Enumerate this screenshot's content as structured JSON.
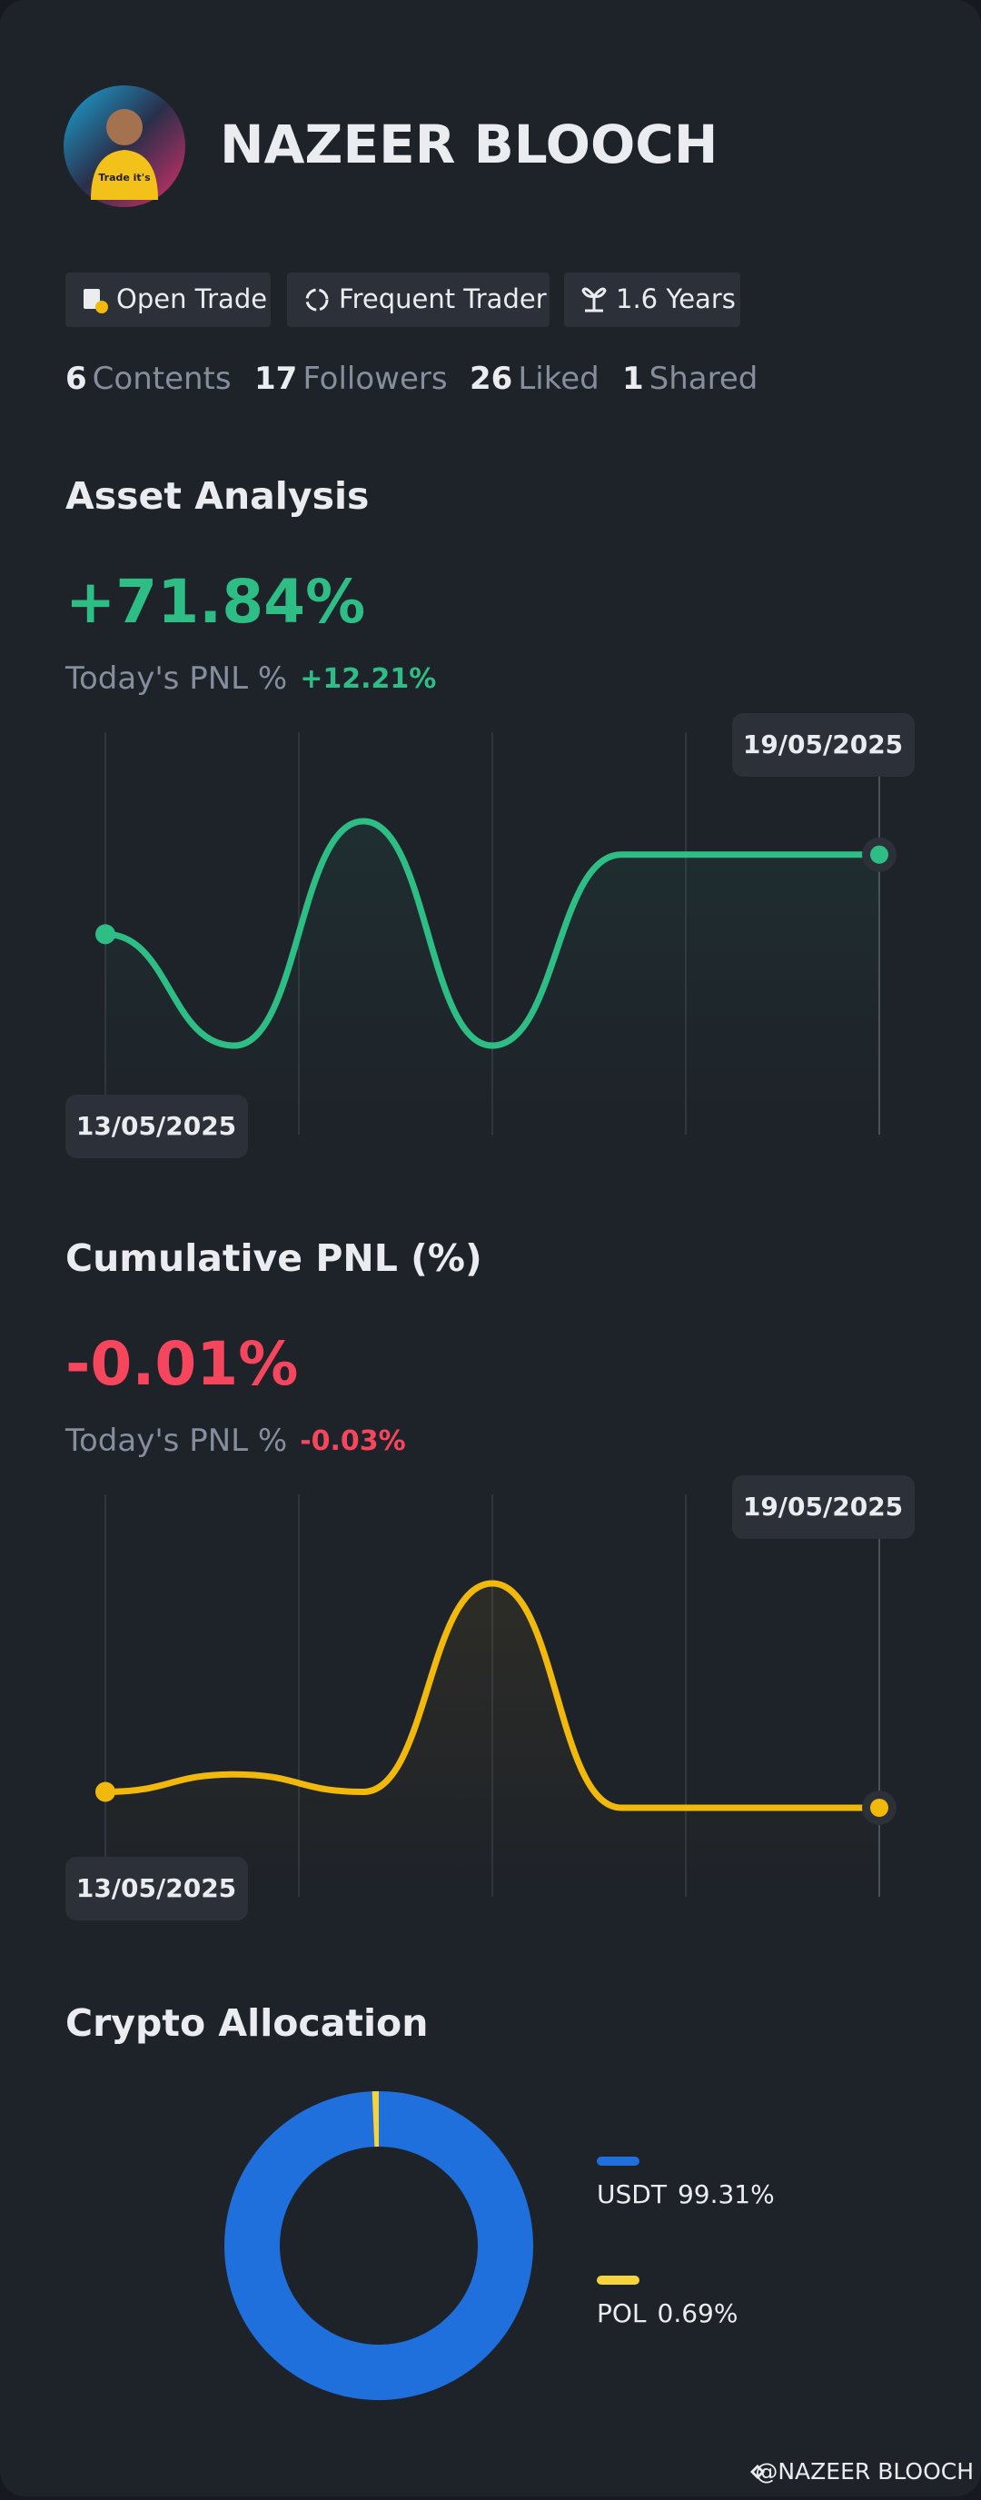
{
  "profile": {
    "name": "NAZEER BLOOCH",
    "tags": [
      "Open Trade",
      "Frequent Trader",
      "1.6 Years"
    ],
    "stats": [
      {
        "count": 6,
        "label": "Contents"
      },
      {
        "count": 17,
        "label": "Followers"
      },
      {
        "count": 26,
        "label": "Liked"
      },
      {
        "count": 1,
        "label": "Shared"
      }
    ]
  },
  "chart_data": [
    {
      "type": "line",
      "title": "Asset Analysis",
      "headline": "+71.84%",
      "today_label": "Today's PNL %",
      "today_value": "+12.21%",
      "categories": [
        "13/05/2025",
        null,
        null,
        null,
        null,
        null,
        "19/05/2025"
      ],
      "values": [
        0,
        -100.6,
        102,
        -100.6,
        71.84,
        71.84,
        71.84
      ],
      "color": "#2ebd85"
    },
    {
      "type": "line",
      "title": "Cumulative PNL (%)",
      "headline": "-0.01%",
      "today_label": "Today's PNL %",
      "today_value": "-0.03%",
      "categories": [
        "13/05/2025",
        null,
        null,
        null,
        null,
        null,
        "19/05/2025"
      ],
      "values": [
        0,
        0.011,
        0,
        0.131,
        -0.01,
        -0.01,
        -0.01
      ],
      "color": "#f0b90b"
    },
    {
      "type": "donut",
      "title": "Crypto Allocation",
      "categories": [
        "USDT",
        "POL"
      ],
      "values": [
        99.31,
        0.69
      ],
      "value_labels": [
        "99.31%",
        "0.69%"
      ],
      "colors": [
        "#1f6fdc",
        "#f5d33b"
      ]
    }
  ],
  "footer": "@NAZEER BLOOCH"
}
